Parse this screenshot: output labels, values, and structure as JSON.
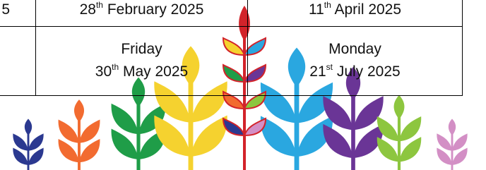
{
  "table": {
    "rows": [
      [
        "5",
        {
          "day": "28",
          "suffix": "th",
          "rest": "February 2025"
        },
        {
          "day": "11",
          "suffix": "th",
          "rest": "April 2025"
        }
      ],
      [
        null,
        {
          "weekday": "Friday",
          "day": "30",
          "suffix": "th",
          "rest": "May 2025"
        },
        {
          "weekday": "Monday",
          "day": "21",
          "suffix": "st",
          "rest": "July 2025"
        }
      ]
    ]
  }
}
